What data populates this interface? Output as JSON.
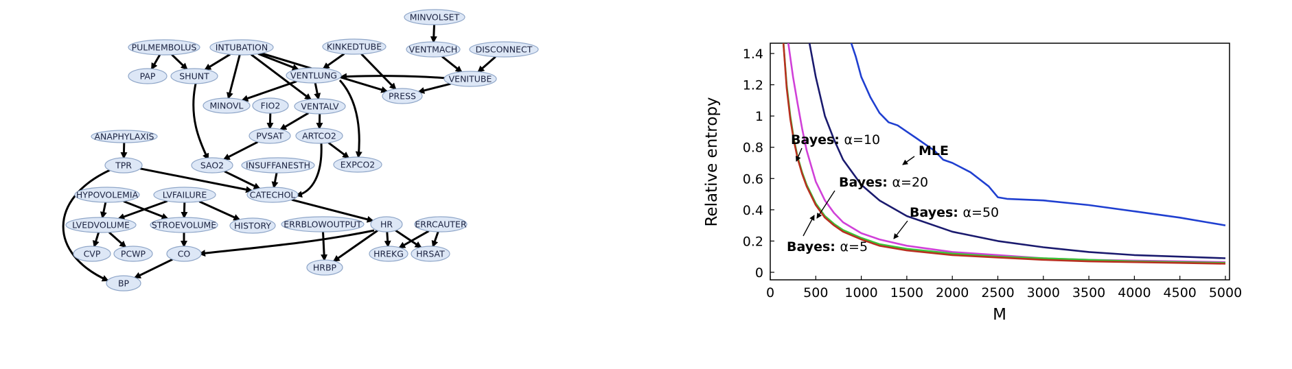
{
  "network": {
    "nodes": [
      {
        "id": "MINVOLSET",
        "label": "MINVOLSET"
      },
      {
        "id": "PULMEMBOLUS",
        "label": "PULMEMBOLUS"
      },
      {
        "id": "INTUBATION",
        "label": "INTUBATION"
      },
      {
        "id": "KINKEDTUBE",
        "label": "KINKEDTUBE"
      },
      {
        "id": "VENTMACH",
        "label": "VENTMACH"
      },
      {
        "id": "DISCONNECT",
        "label": "DISCONNECT"
      },
      {
        "id": "PAP",
        "label": "PAP"
      },
      {
        "id": "SHUNT",
        "label": "SHUNT"
      },
      {
        "id": "VENTLUNG",
        "label": "VENTLUNG"
      },
      {
        "id": "VENITUBE",
        "label": "VENITUBE"
      },
      {
        "id": "PRESS",
        "label": "PRESS"
      },
      {
        "id": "MINOVL",
        "label": "MINOVL"
      },
      {
        "id": "FIO2",
        "label": "FIO2"
      },
      {
        "id": "VENTALV",
        "label": "VENTALV"
      },
      {
        "id": "ANAPHYLAXIS",
        "label": "ANAPHYLAXIS"
      },
      {
        "id": "PVSAT",
        "label": "PVSAT"
      },
      {
        "id": "ARTCO2",
        "label": "ARTCO2"
      },
      {
        "id": "TPR",
        "label": "TPR"
      },
      {
        "id": "SAO2",
        "label": "SAO2"
      },
      {
        "id": "INSUFFANESTH",
        "label": "INSUFFANESTH"
      },
      {
        "id": "EXPCO2",
        "label": "EXPCO2"
      },
      {
        "id": "HYPOVOLEMIA",
        "label": "HYPOVOLEMIA"
      },
      {
        "id": "LVFAILURE",
        "label": "LVFAILURE"
      },
      {
        "id": "CATECHOL",
        "label": "CATECHOL"
      },
      {
        "id": "LVEDVOLUME",
        "label": "LVEDVOLUME"
      },
      {
        "id": "STROEVOLUME",
        "label": "STROEVOLUME"
      },
      {
        "id": "HISTORY",
        "label": "HISTORY"
      },
      {
        "id": "ERRBLOWOUTPUT",
        "label": "ERRBLOWOUTPUT"
      },
      {
        "id": "HR",
        "label": "HR"
      },
      {
        "id": "ERRCAUTER",
        "label": "ERRCAUTER"
      },
      {
        "id": "CVP",
        "label": "CVP"
      },
      {
        "id": "PCWP",
        "label": "PCWP"
      },
      {
        "id": "CO",
        "label": "CO"
      },
      {
        "id": "HREKG",
        "label": "HREKG"
      },
      {
        "id": "HRSAT",
        "label": "HRSAT"
      },
      {
        "id": "HRBP",
        "label": "HRBP"
      },
      {
        "id": "BP",
        "label": "BP"
      }
    ],
    "edges": [
      [
        "MINVOLSET",
        "VENTMACH"
      ],
      [
        "VENTMACH",
        "VENITUBE"
      ],
      [
        "DISCONNECT",
        "VENITUBE"
      ],
      [
        "PULMEMBOLUS",
        "PAP"
      ],
      [
        "PULMEMBOLUS",
        "SHUNT"
      ],
      [
        "INTUBATION",
        "SHUNT"
      ],
      [
        "INTUBATION",
        "VENTLUNG"
      ],
      [
        "INTUBATION",
        "MINOVL"
      ],
      [
        "INTUBATION",
        "VENTALV"
      ],
      [
        "INTUBATION",
        "PRESS"
      ],
      [
        "KINKEDTUBE",
        "VENTLUNG"
      ],
      [
        "KINKEDTUBE",
        "PRESS"
      ],
      [
        "VENITUBE",
        "VENTLUNG"
      ],
      [
        "VENITUBE",
        "PRESS"
      ],
      [
        "VENTLUNG",
        "MINOVL"
      ],
      [
        "VENTLUNG",
        "VENTALV"
      ],
      [
        "VENTLUNG",
        "EXPCO2"
      ],
      [
        "FIO2",
        "PVSAT"
      ],
      [
        "VENTALV",
        "PVSAT"
      ],
      [
        "VENTALV",
        "ARTCO2"
      ],
      [
        "SHUNT",
        "SAO2"
      ],
      [
        "PVSAT",
        "SAO2"
      ],
      [
        "ARTCO2",
        "EXPCO2"
      ],
      [
        "ARTCO2",
        "CATECHOL"
      ],
      [
        "ANAPHYLAXIS",
        "TPR"
      ],
      [
        "TPR",
        "CATECHOL"
      ],
      [
        "TPR",
        "BP"
      ],
      [
        "SAO2",
        "CATECHOL"
      ],
      [
        "INSUFFANESTH",
        "CATECHOL"
      ],
      [
        "CATECHOL",
        "HR"
      ],
      [
        "HYPOVOLEMIA",
        "LVEDVOLUME"
      ],
      [
        "HYPOVOLEMIA",
        "STROEVOLUME"
      ],
      [
        "LVFAILURE",
        "LVEDVOLUME"
      ],
      [
        "LVFAILURE",
        "STROEVOLUME"
      ],
      [
        "LVFAILURE",
        "HISTORY"
      ],
      [
        "LVEDVOLUME",
        "CVP"
      ],
      [
        "LVEDVOLUME",
        "PCWP"
      ],
      [
        "STROEVOLUME",
        "CO"
      ],
      [
        "ERRBLOWOUTPUT",
        "HRBP"
      ],
      [
        "HR",
        "CO"
      ],
      [
        "HR",
        "HRBP"
      ],
      [
        "HR",
        "HREKG"
      ],
      [
        "HR",
        "HRSAT"
      ],
      [
        "ERRCAUTER",
        "HREKG"
      ],
      [
        "ERRCAUTER",
        "HRSAT"
      ],
      [
        "CO",
        "BP"
      ]
    ]
  },
  "chart_data": {
    "type": "line",
    "title": "",
    "xlabel": "M",
    "ylabel": "Relative entropy",
    "xlim": [
      0,
      5000
    ],
    "ylim": [
      0,
      1.4
    ],
    "xticks": [
      "0",
      "500",
      "1000",
      "1500",
      "2000",
      "2500",
      "3000",
      "3500",
      "4000",
      "4500",
      "5000"
    ],
    "yticks": [
      "0",
      "0.2",
      "0.4",
      "0.6",
      "0.8",
      "1",
      "1.2",
      "1.4"
    ],
    "grid": false,
    "series": [
      {
        "name": "MLE",
        "color": "#1f3fd0",
        "x": [
          870,
          940,
          1000,
          1100,
          1200,
          1300,
          1400,
          1500,
          1600,
          1700,
          1800,
          1900,
          2000,
          2200,
          2400,
          2500,
          2600,
          3000,
          3500,
          4000,
          4500,
          4800,
          5000
        ],
        "y": [
          1.5,
          1.38,
          1.25,
          1.12,
          1.02,
          0.96,
          0.94,
          0.9,
          0.86,
          0.82,
          0.78,
          0.72,
          0.7,
          0.64,
          0.55,
          0.48,
          0.47,
          0.46,
          0.43,
          0.39,
          0.35,
          0.32,
          0.3
        ]
      },
      {
        "name": "Bayes: α=50",
        "color": "#1a1a6e",
        "x": [
          420,
          500,
          600,
          700,
          800,
          1000,
          1200,
          1500,
          2000,
          2500,
          3000,
          3500,
          4000,
          4500,
          5000
        ],
        "y": [
          1.5,
          1.25,
          1.0,
          0.85,
          0.72,
          0.56,
          0.46,
          0.36,
          0.26,
          0.2,
          0.16,
          0.13,
          0.11,
          0.1,
          0.09
        ]
      },
      {
        "name": "Bayes: α=20",
        "color": "#d040d8",
        "x": [
          190,
          250,
          300,
          350,
          400,
          500,
          600,
          700,
          800,
          1000,
          1200,
          1500,
          2000,
          2500,
          3000,
          3500,
          4000,
          4500,
          5000
        ],
        "y": [
          1.5,
          1.25,
          1.08,
          0.92,
          0.78,
          0.58,
          0.46,
          0.38,
          0.32,
          0.25,
          0.21,
          0.17,
          0.13,
          0.11,
          0.09,
          0.08,
          0.075,
          0.07,
          0.065
        ]
      },
      {
        "name": "Bayes: α=10",
        "color": "#38c838",
        "x": [
          140,
          180,
          220,
          260,
          300,
          350,
          400,
          500,
          600,
          700,
          800,
          1000,
          1200,
          1500,
          2000,
          2500,
          3000,
          3500,
          4000,
          4500,
          5000
        ],
        "y": [
          1.5,
          1.2,
          1.0,
          0.85,
          0.74,
          0.64,
          0.56,
          0.44,
          0.36,
          0.31,
          0.27,
          0.22,
          0.18,
          0.15,
          0.12,
          0.1,
          0.09,
          0.08,
          0.07,
          0.065,
          0.06
        ]
      },
      {
        "name": "Bayes: α=5",
        "color": "#b83020",
        "x": [
          140,
          180,
          220,
          260,
          300,
          350,
          400,
          500,
          600,
          700,
          800,
          1000,
          1200,
          1500,
          2000,
          2500,
          3000,
          3500,
          4000,
          4500,
          5000
        ],
        "y": [
          1.5,
          1.18,
          0.98,
          0.84,
          0.73,
          0.63,
          0.55,
          0.43,
          0.35,
          0.3,
          0.26,
          0.21,
          0.17,
          0.14,
          0.11,
          0.095,
          0.08,
          0.07,
          0.065,
          0.06,
          0.055
        ]
      }
    ],
    "annotations": [
      {
        "prefix": "Bayes:",
        "alpha": "α=10"
      },
      {
        "prefix": "",
        "alpha": "MLE"
      },
      {
        "prefix": "Bayes:",
        "alpha": "α=20"
      },
      {
        "prefix": "Bayes:",
        "alpha": "α=50"
      },
      {
        "prefix": "Bayes:",
        "alpha": "α=5"
      }
    ]
  }
}
